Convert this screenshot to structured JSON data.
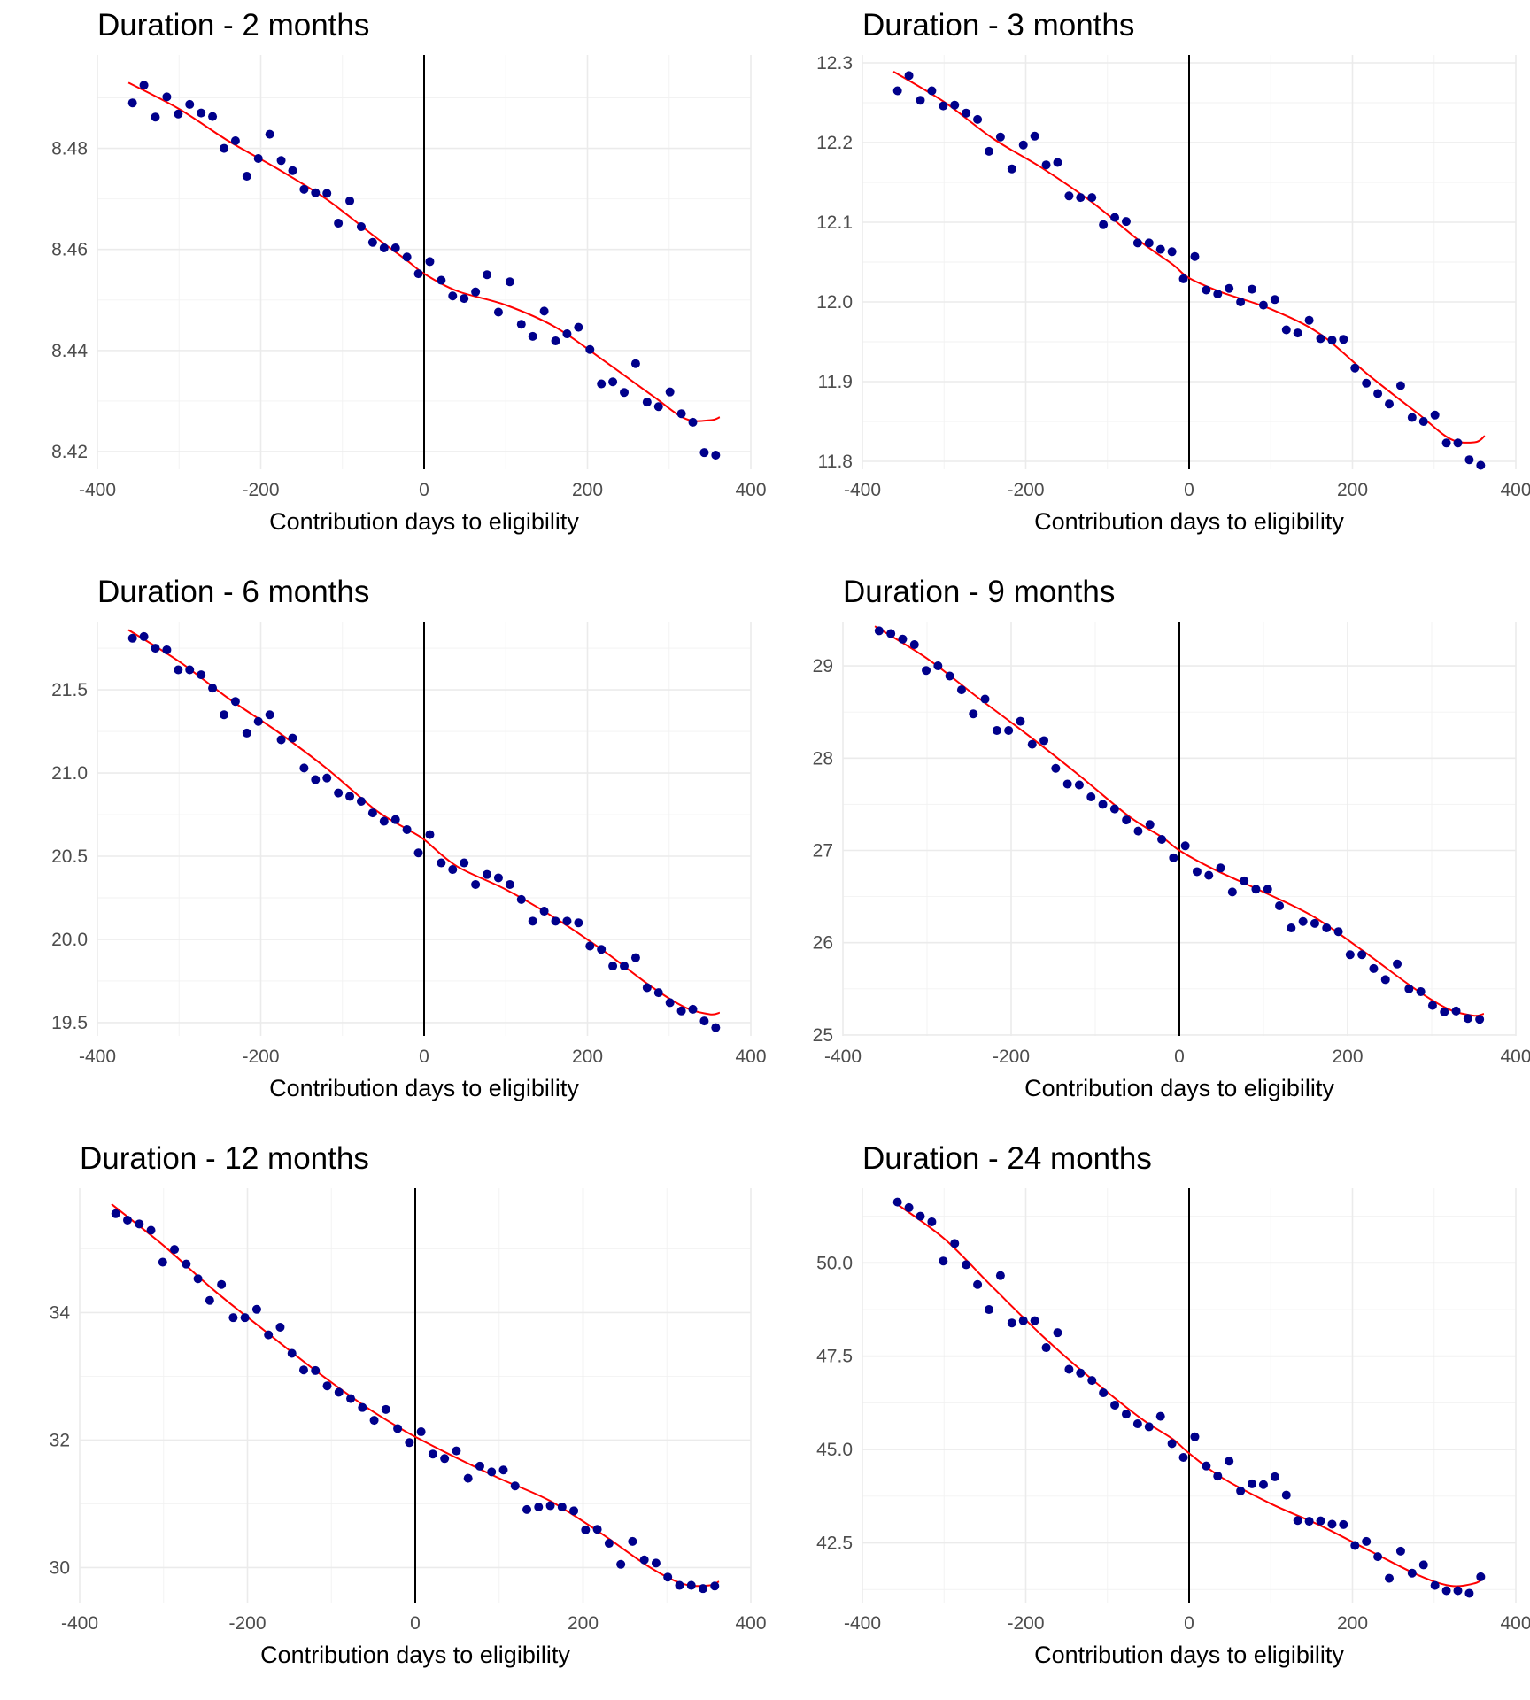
{
  "chart_data": [
    {
      "type": "scatter",
      "title": "Duration - 2 months",
      "xlabel": "Contribution days to eligibility",
      "ylabel": "",
      "xlim": [
        -400,
        400
      ],
      "ylim": [
        8.4165,
        8.4985
      ],
      "xticks": [
        -400,
        -200,
        0,
        200,
        400
      ],
      "xtick_labels": [
        "-400",
        "-200",
        "0",
        "200",
        "400"
      ],
      "yticks": [
        8.42,
        8.44,
        8.46,
        8.48
      ],
      "ytick_labels": [
        "8.42",
        "8.44",
        "8.46",
        "8.48"
      ],
      "cutoff_x": 0,
      "x": [
        -357,
        -343,
        -329,
        -315,
        -301,
        -287,
        -273,
        -259,
        -245,
        -231,
        -217,
        -203,
        -189,
        -175,
        -161,
        -147,
        -133,
        -119,
        -105,
        -91,
        -77,
        -63,
        -49,
        -35,
        -21,
        -7,
        7,
        21,
        35,
        49,
        63,
        77,
        91,
        105,
        119,
        133,
        147,
        161,
        175,
        189,
        203,
        217,
        231,
        245,
        259,
        273,
        287,
        301,
        315,
        329,
        343,
        357
      ],
      "y": [
        8.489,
        8.4925,
        8.4862,
        8.4902,
        8.4868,
        8.4887,
        8.487,
        8.4863,
        8.48,
        8.4815,
        8.4745,
        8.478,
        8.4828,
        8.4776,
        8.4756,
        8.4719,
        8.4712,
        8.4711,
        8.4652,
        8.4696,
        8.4645,
        8.4614,
        8.4603,
        8.4603,
        8.4585,
        8.4552,
        8.4576,
        8.4539,
        8.4508,
        8.4503,
        8.4516,
        8.455,
        8.4476,
        8.4536,
        8.4452,
        8.4428,
        8.4478,
        8.4419,
        8.4433,
        8.4446,
        8.4402,
        8.4334,
        8.4338,
        8.4317,
        8.4374,
        8.4298,
        8.4289,
        8.4318,
        8.4275,
        8.4258,
        8.4198,
        8.4193
      ],
      "fit": {
        "x": [
          -362,
          -300,
          -240,
          -180,
          -120,
          -60,
          -20,
          0,
          40,
          100,
          160,
          220,
          280,
          320,
          350,
          362
        ],
        "y": [
          8.493,
          8.4878,
          8.4815,
          8.476,
          8.47,
          8.4625,
          8.4577,
          8.4552,
          8.4518,
          8.449,
          8.4447,
          8.438,
          8.431,
          8.4265,
          8.4262,
          8.4268
        ]
      }
    },
    {
      "type": "scatter",
      "title": "Duration - 3 months",
      "xlabel": "Contribution days to eligibility",
      "ylabel": "",
      "xlim": [
        -400,
        400
      ],
      "ylim": [
        11.79,
        12.31
      ],
      "xticks": [
        -400,
        -200,
        0,
        200,
        400
      ],
      "xtick_labels": [
        "-400",
        "-200",
        "0",
        "200",
        "400"
      ],
      "yticks": [
        11.8,
        11.9,
        12.0,
        12.1,
        12.2,
        12.3
      ],
      "ytick_labels": [
        "11.8",
        "11.9",
        "12.0",
        "12.1",
        "12.2",
        "12.3"
      ],
      "cutoff_x": 0,
      "x": [
        -357,
        -343,
        -329,
        -315,
        -301,
        -287,
        -273,
        -259,
        -245,
        -231,
        -217,
        -203,
        -189,
        -175,
        -161,
        -147,
        -133,
        -119,
        -105,
        -91,
        -77,
        -63,
        -49,
        -35,
        -21,
        -7,
        7,
        21,
        35,
        49,
        63,
        77,
        91,
        105,
        119,
        133,
        147,
        161,
        175,
        189,
        203,
        217,
        231,
        245,
        259,
        273,
        287,
        301,
        315,
        329,
        343,
        357
      ],
      "y": [
        12.265,
        12.284,
        12.253,
        12.265,
        12.246,
        12.247,
        12.237,
        12.229,
        12.189,
        12.207,
        12.167,
        12.197,
        12.208,
        12.172,
        12.175,
        12.133,
        12.131,
        12.131,
        12.097,
        12.106,
        12.101,
        12.074,
        12.074,
        12.066,
        12.063,
        12.029,
        12.057,
        12.015,
        12.01,
        12.017,
        12.0,
        12.016,
        11.996,
        12.003,
        11.965,
        11.961,
        11.977,
        11.954,
        11.952,
        11.953,
        11.917,
        11.898,
        11.885,
        11.872,
        11.895,
        11.855,
        11.85,
        11.858,
        11.823,
        11.823,
        11.802,
        11.795
      ],
      "fit": {
        "x": [
          -362,
          -300,
          -240,
          -180,
          -120,
          -60,
          -20,
          0,
          40,
          100,
          160,
          220,
          280,
          320,
          350,
          362
        ],
        "y": [
          12.289,
          12.251,
          12.205,
          12.168,
          12.126,
          12.076,
          12.047,
          12.03,
          12.012,
          11.991,
          11.96,
          11.908,
          11.86,
          11.828,
          11.824,
          11.832
        ]
      }
    },
    {
      "type": "scatter",
      "title": "Duration - 6 months",
      "xlabel": "Contribution days to eligibility",
      "ylabel": "",
      "xlim": [
        -400,
        400
      ],
      "ylim": [
        19.42,
        21.91
      ],
      "xticks": [
        -400,
        -200,
        0,
        200,
        400
      ],
      "xtick_labels": [
        "-400",
        "-200",
        "0",
        "200",
        "400"
      ],
      "yticks": [
        19.5,
        20.0,
        20.5,
        21.0,
        21.5
      ],
      "ytick_labels": [
        "19.5",
        "20.0",
        "20.5",
        "21.0",
        "21.5"
      ],
      "cutoff_x": 0,
      "x": [
        -357,
        -343,
        -329,
        -315,
        -301,
        -287,
        -273,
        -259,
        -245,
        -231,
        -217,
        -203,
        -189,
        -175,
        -161,
        -147,
        -133,
        -119,
        -105,
        -91,
        -77,
        -63,
        -49,
        -35,
        -21,
        -7,
        7,
        21,
        35,
        49,
        63,
        77,
        91,
        105,
        119,
        133,
        147,
        161,
        175,
        189,
        203,
        217,
        231,
        245,
        259,
        273,
        287,
        301,
        315,
        329,
        343,
        357
      ],
      "y": [
        21.81,
        21.82,
        21.75,
        21.74,
        21.62,
        21.62,
        21.59,
        21.51,
        21.35,
        21.43,
        21.24,
        21.31,
        21.35,
        21.2,
        21.21,
        21.03,
        20.96,
        20.97,
        20.88,
        20.86,
        20.83,
        20.76,
        20.71,
        20.72,
        20.66,
        20.52,
        20.63,
        20.46,
        20.42,
        20.46,
        20.33,
        20.39,
        20.37,
        20.33,
        20.24,
        20.11,
        20.17,
        20.11,
        20.11,
        20.1,
        19.96,
        19.94,
        19.84,
        19.84,
        19.89,
        19.71,
        19.68,
        19.62,
        19.57,
        19.58,
        19.51,
        19.47
      ],
      "fit": {
        "x": [
          -362,
          -300,
          -240,
          -180,
          -120,
          -60,
          -20,
          0,
          40,
          100,
          160,
          220,
          280,
          320,
          350,
          362
        ],
        "y": [
          21.86,
          21.67,
          21.45,
          21.25,
          21.03,
          20.78,
          20.66,
          20.6,
          20.44,
          20.3,
          20.13,
          19.93,
          19.71,
          19.59,
          19.55,
          19.56
        ]
      }
    },
    {
      "type": "scatter",
      "title": "Duration - 9 months",
      "xlabel": "Contribution days to eligibility",
      "ylabel": "",
      "xlim": [
        -400,
        400
      ],
      "ylim": [
        24.99,
        29.48
      ],
      "xticks": [
        -400,
        -200,
        0,
        200,
        400
      ],
      "xtick_labels": [
        "-400",
        "-200",
        "0",
        "200",
        "400"
      ],
      "yticks": [
        25,
        26,
        27,
        28,
        29
      ],
      "ytick_labels": [
        "25",
        "26",
        "27",
        "28",
        "29"
      ],
      "cutoff_x": 0,
      "x": [
        -357,
        -343,
        -329,
        -315,
        -301,
        -287,
        -273,
        -259,
        -245,
        -231,
        -217,
        -203,
        -189,
        -175,
        -161,
        -147,
        -133,
        -119,
        -105,
        -91,
        -77,
        -63,
        -49,
        -35,
        -21,
        -7,
        7,
        21,
        35,
        49,
        63,
        77,
        91,
        105,
        119,
        133,
        147,
        161,
        175,
        189,
        203,
        217,
        231,
        245,
        259,
        273,
        287,
        301,
        315,
        329,
        343,
        357
      ],
      "y": [
        29.38,
        29.35,
        29.29,
        29.23,
        28.95,
        29.0,
        28.89,
        28.74,
        28.48,
        28.64,
        28.3,
        28.3,
        28.4,
        28.15,
        28.19,
        27.89,
        27.72,
        27.71,
        27.58,
        27.5,
        27.45,
        27.33,
        27.21,
        27.28,
        27.12,
        26.92,
        27.05,
        26.77,
        26.73,
        26.81,
        26.55,
        26.67,
        26.58,
        26.58,
        26.4,
        26.16,
        26.23,
        26.21,
        26.16,
        26.12,
        25.87,
        25.87,
        25.72,
        25.6,
        25.77,
        25.5,
        25.47,
        25.32,
        25.25,
        25.26,
        25.18,
        25.17
      ],
      "fit": {
        "x": [
          -362,
          -300,
          -240,
          -180,
          -120,
          -60,
          -20,
          0,
          40,
          100,
          160,
          220,
          280,
          320,
          350,
          362
        ],
        "y": [
          29.43,
          29.08,
          28.66,
          28.25,
          27.82,
          27.37,
          27.14,
          27.0,
          26.8,
          26.55,
          26.28,
          25.9,
          25.5,
          25.28,
          25.21,
          25.23
        ]
      }
    },
    {
      "type": "scatter",
      "title": "Duration - 12 months",
      "xlabel": "Contribution days to eligibility",
      "ylabel": "",
      "xlim": [
        -400,
        400
      ],
      "ylim": [
        29.45,
        35.95
      ],
      "xticks": [
        -400,
        -200,
        0,
        200,
        400
      ],
      "xtick_labels": [
        "-400",
        "-200",
        "0",
        "200",
        "400"
      ],
      "yticks": [
        30,
        32,
        34
      ],
      "ytick_labels": [
        "30",
        "32",
        "34"
      ],
      "cutoff_x": 0,
      "x": [
        -357,
        -343,
        -329,
        -315,
        -301,
        -287,
        -273,
        -259,
        -245,
        -231,
        -217,
        -203,
        -189,
        -175,
        -161,
        -147,
        -133,
        -119,
        -105,
        -91,
        -77,
        -63,
        -49,
        -35,
        -21,
        -7,
        7,
        21,
        35,
        49,
        63,
        77,
        91,
        105,
        119,
        133,
        147,
        161,
        175,
        189,
        203,
        217,
        231,
        245,
        259,
        273,
        287,
        301,
        315,
        329,
        343,
        357
      ],
      "y": [
        35.55,
        35.45,
        35.39,
        35.29,
        34.79,
        34.99,
        34.76,
        34.53,
        34.19,
        34.44,
        33.92,
        33.92,
        34.05,
        33.65,
        33.77,
        33.36,
        33.1,
        33.09,
        32.85,
        32.75,
        32.65,
        32.51,
        32.31,
        32.48,
        32.18,
        31.96,
        32.13,
        31.78,
        31.71,
        31.83,
        31.4,
        31.59,
        31.5,
        31.53,
        31.28,
        30.91,
        30.95,
        30.97,
        30.95,
        30.89,
        30.59,
        30.6,
        30.38,
        30.05,
        30.41,
        30.12,
        30.07,
        29.85,
        29.72,
        29.72,
        29.67,
        29.71
      ],
      "fit": {
        "x": [
          -362,
          -300,
          -240,
          -180,
          -120,
          -60,
          -20,
          0,
          40,
          100,
          160,
          220,
          280,
          320,
          350,
          362
        ],
        "y": [
          35.7,
          35.05,
          34.35,
          33.72,
          33.1,
          32.53,
          32.2,
          32.05,
          31.78,
          31.4,
          31.05,
          30.55,
          30.0,
          29.74,
          29.72,
          29.78
        ]
      }
    },
    {
      "type": "scatter",
      "title": "Duration - 24 months",
      "xlabel": "Contribution days to eligibility",
      "ylabel": "",
      "xlim": [
        -400,
        400
      ],
      "ylim": [
        40.9,
        52.0
      ],
      "xticks": [
        -400,
        -200,
        0,
        200,
        400
      ],
      "xtick_labels": [
        "-400",
        "-200",
        "0",
        "200",
        "400"
      ],
      "yticks": [
        42.5,
        45.0,
        47.5,
        50.0
      ],
      "ytick_labels": [
        "42.5",
        "45.0",
        "47.5",
        "50.0"
      ],
      "cutoff_x": 0,
      "x": [
        -357,
        -343,
        -329,
        -315,
        -301,
        -287,
        -273,
        -259,
        -245,
        -231,
        -217,
        -203,
        -189,
        -175,
        -161,
        -147,
        -133,
        -119,
        -105,
        -91,
        -77,
        -63,
        -49,
        -35,
        -21,
        -7,
        7,
        21,
        35,
        49,
        63,
        77,
        91,
        105,
        119,
        133,
        147,
        161,
        175,
        189,
        203,
        217,
        231,
        245,
        259,
        273,
        287,
        301,
        315,
        329,
        343,
        357
      ],
      "y": [
        51.63,
        51.48,
        51.25,
        51.1,
        50.05,
        50.52,
        49.95,
        49.42,
        48.75,
        49.66,
        48.39,
        48.45,
        48.45,
        47.73,
        48.13,
        47.15,
        47.05,
        46.85,
        46.52,
        46.19,
        45.95,
        45.69,
        45.61,
        45.89,
        45.16,
        44.79,
        45.34,
        44.56,
        44.29,
        44.69,
        43.89,
        44.08,
        44.06,
        44.27,
        43.78,
        43.1,
        43.08,
        43.09,
        43.0,
        42.99,
        42.43,
        42.54,
        42.13,
        41.55,
        42.28,
        41.69,
        41.91,
        41.36,
        41.22,
        41.22,
        41.15,
        41.59
      ],
      "fit": {
        "x": [
          -362,
          -300,
          -240,
          -180,
          -120,
          -60,
          -20,
          0,
          40,
          100,
          160,
          220,
          280,
          320,
          350,
          362
        ],
        "y": [
          51.64,
          50.65,
          49.34,
          48.05,
          46.9,
          45.85,
          45.28,
          44.9,
          44.25,
          43.55,
          42.97,
          42.3,
          41.64,
          41.35,
          41.42,
          41.58
        ]
      }
    }
  ]
}
